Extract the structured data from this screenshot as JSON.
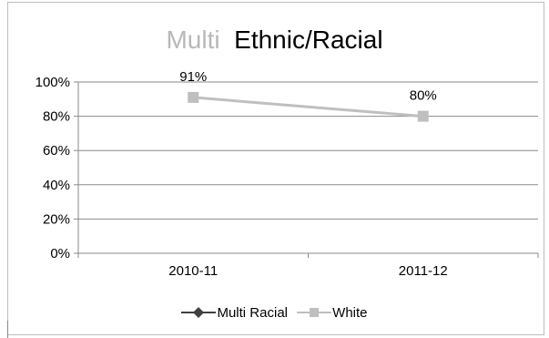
{
  "chart_data": {
    "type": "line",
    "title": "Multi  Ethnic/Racial",
    "title_parts": [
      "Multi ",
      "Ethnic/Racial"
    ],
    "categories": [
      "2010-11",
      "2011-12"
    ],
    "series": [
      {
        "name": "Multi Racial",
        "values": [
          null,
          null
        ],
        "color": "#404040",
        "marker": "diamond"
      },
      {
        "name": "White",
        "values": [
          91,
          80
        ],
        "color": "#bfbfbf",
        "marker": "square"
      }
    ],
    "data_labels": [
      "91%",
      "80%"
    ],
    "ylim": [
      0,
      100
    ],
    "yticks": [
      "0%",
      "20%",
      "40%",
      "60%",
      "80%",
      "100%"
    ],
    "ytick_values": [
      0,
      20,
      40,
      60,
      80,
      100
    ],
    "xlabel": "",
    "ylabel": "",
    "grid": true,
    "legend_position": "bottom"
  }
}
